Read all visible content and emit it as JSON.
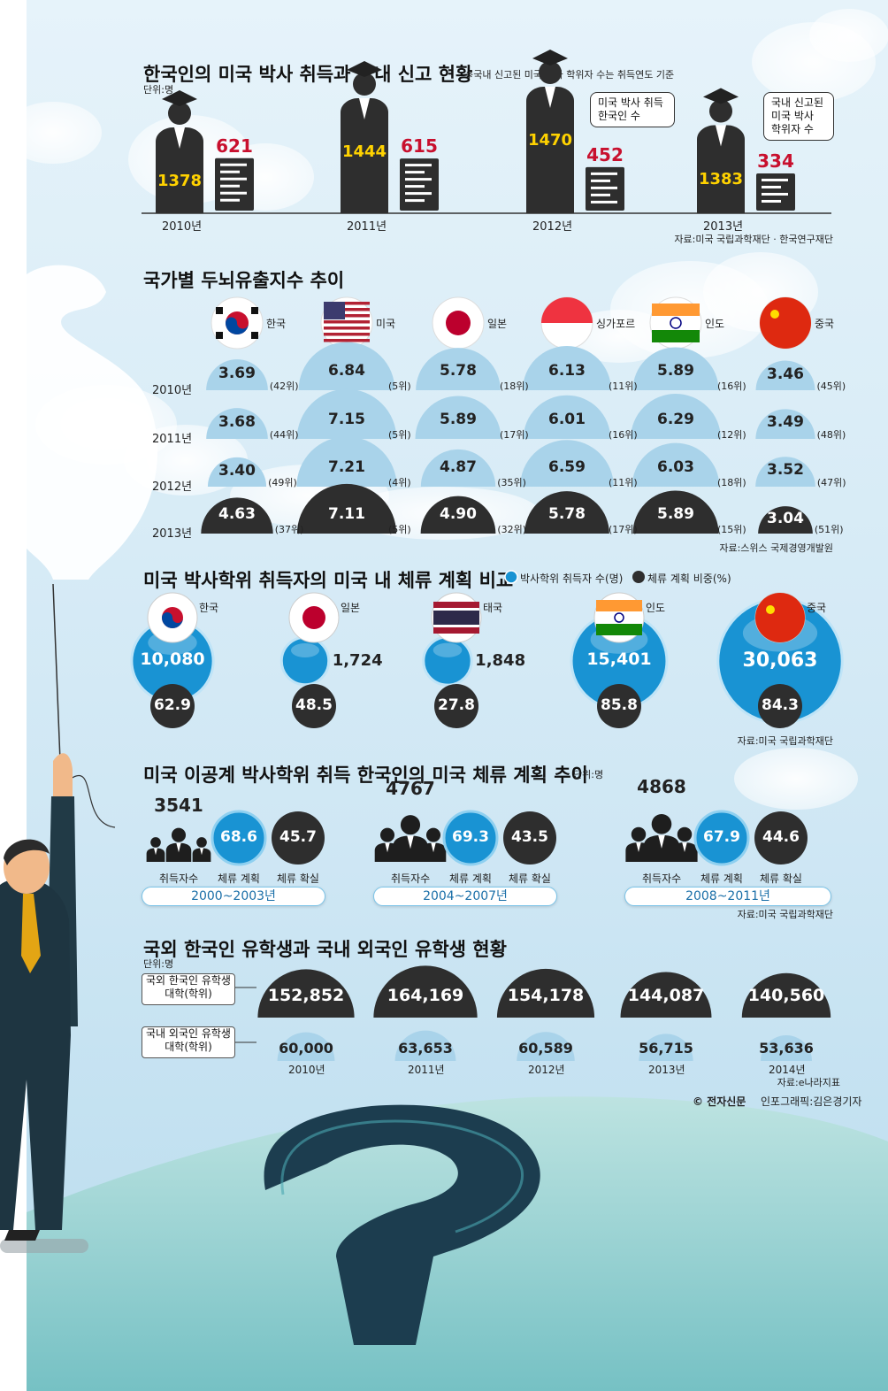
{
  "section1": {
    "title": "한국인의 미국 박사 취득과 국내 신고 현황",
    "note": "※국내 신고된 미국 박사 학위자 수는 취득연도 기준",
    "unit": "단위:명",
    "callout_phd": "미국 박사 취득 한국인 수",
    "callout_reported": "국내 신고된 미국 박사 학위자 수",
    "source": "자료:미국 국립과학재단 · 한국연구재단"
  },
  "section2": {
    "title": "국가별 두뇌유출지수 추이",
    "countries": [
      "한국",
      "미국",
      "일본",
      "싱가포르",
      "인도",
      "중국"
    ],
    "source": "자료:스위스 국제경영개발원"
  },
  "section3": {
    "title": "미국 박사학위 취득자의 미국 내 체류 계획 비교",
    "legend_count": "박사학위 취득자 수(명)",
    "legend_ratio": "체류 계획 비중(%)",
    "source": "자료:미국 국립과학재단"
  },
  "section4": {
    "title": "미국 이공계 박사학위 취득 한국인의 미국 체류 계획 추이",
    "unit": "단위:명",
    "label_count": "취득자수",
    "label_plan": "체류 계획",
    "label_confirmed": "체류 확실",
    "source": "자료:미국 국립과학재단"
  },
  "section5": {
    "title": "국외 한국인 유학생과 국내 외국인 유학생 현황",
    "unit": "단위:명",
    "label_abroad": "국외 한국인 유학생 대학(학위)",
    "label_domestic": "국내 외국인 유학생 대학(학위)",
    "source": "자료:e나라지표"
  },
  "credit": {
    "copyright": "© 전자신문",
    "text": "인포그래픽:김은경기자"
  },
  "colors": {
    "sky": "#cfe8f5",
    "light_half": "#a9d3ea",
    "dark_half": "#2e2e2e",
    "bubble": "#1993d3",
    "red_value": "#c8102e",
    "gold_value": "#ffd200",
    "pill_border": "#7cc4e8"
  },
  "chart_data": [
    {
      "type": "bar",
      "title": "한국인의 미국 박사 취득과 국내 신고 현황",
      "categories": [
        "2010년",
        "2011년",
        "2012년",
        "2013년"
      ],
      "series": [
        {
          "name": "미국 박사 취득 한국인 수",
          "values": [
            1378,
            1444,
            1470,
            1383
          ]
        },
        {
          "name": "국내 신고된 미국 박사 학위자 수",
          "values": [
            621,
            615,
            452,
            334
          ]
        }
      ]
    },
    {
      "type": "table",
      "title": "국가별 두뇌유출지수 추이",
      "categories": [
        "2010년",
        "2011년",
        "2012년",
        "2013년"
      ],
      "series": [
        {
          "name": "한국",
          "values": [
            3.69,
            3.68,
            3.4,
            4.63
          ],
          "ranks": [
            "(42위)",
            "(44위)",
            "(49위)",
            "(37위)"
          ]
        },
        {
          "name": "미국",
          "values": [
            6.84,
            7.15,
            7.21,
            7.11
          ],
          "ranks": [
            "(5위)",
            "(5위)",
            "(4위)",
            "(5위)"
          ]
        },
        {
          "name": "일본",
          "values": [
            5.78,
            5.89,
            4.87,
            4.9
          ],
          "ranks": [
            "(18위)",
            "(17위)",
            "(35위)",
            "(32위)"
          ]
        },
        {
          "name": "싱가포르",
          "values": [
            6.13,
            6.01,
            6.59,
            5.78
          ],
          "ranks": [
            "(11위)",
            "(16위)",
            "(11위)",
            "(17위)"
          ]
        },
        {
          "name": "인도",
          "values": [
            5.89,
            6.29,
            6.03,
            5.89
          ],
          "ranks": [
            "(16위)",
            "(12위)",
            "(18위)",
            "(15위)"
          ]
        },
        {
          "name": "중국",
          "values": [
            3.46,
            3.49,
            3.52,
            3.04
          ],
          "ranks": [
            "(45위)",
            "(48위)",
            "(47위)",
            "(51위)"
          ]
        }
      ]
    },
    {
      "type": "scatter",
      "title": "미국 박사학위 취득자의 미국 내 체류 계획 비교",
      "categories": [
        "한국",
        "일본",
        "태국",
        "인도",
        "중국"
      ],
      "series": [
        {
          "name": "박사학위 취득자 수(명)",
          "values": [
            10080,
            1724,
            1848,
            15401,
            30063
          ],
          "labels": [
            "10,080",
            "1,724",
            "1,848",
            "15,401",
            "30,063"
          ]
        },
        {
          "name": "체류 계획 비중(%)",
          "values": [
            62.9,
            48.5,
            27.8,
            85.8,
            84.3
          ]
        }
      ]
    },
    {
      "type": "table",
      "title": "미국 이공계 박사학위 취득 한국인의 미국 체류 계획 추이",
      "categories": [
        "2000~2003년",
        "2004~2007년",
        "2008~2011년"
      ],
      "series": [
        {
          "name": "취득자수",
          "values": [
            3541,
            4767,
            4868
          ]
        },
        {
          "name": "체류 계획",
          "values": [
            68.6,
            69.3,
            67.9
          ]
        },
        {
          "name": "체류 확실",
          "values": [
            45.7,
            43.5,
            44.6
          ]
        }
      ]
    },
    {
      "type": "bar",
      "title": "국외 한국인 유학생과 국내 외국인 유학생 현황",
      "categories": [
        "2010년",
        "2011년",
        "2012년",
        "2013년",
        "2014년"
      ],
      "series": [
        {
          "name": "국외 한국인 유학생 대학(학위)",
          "values": [
            152852,
            164169,
            154178,
            144087,
            140560
          ],
          "labels": [
            "152,852",
            "164,169",
            "154,178",
            "144,087",
            "140,560"
          ]
        },
        {
          "name": "국내 외국인 유학생 대학(학위)",
          "values": [
            60000,
            63653,
            60589,
            56715,
            53636
          ],
          "labels": [
            "60,000",
            "63,653",
            "60,589",
            "56,715",
            "53,636"
          ]
        }
      ]
    }
  ]
}
